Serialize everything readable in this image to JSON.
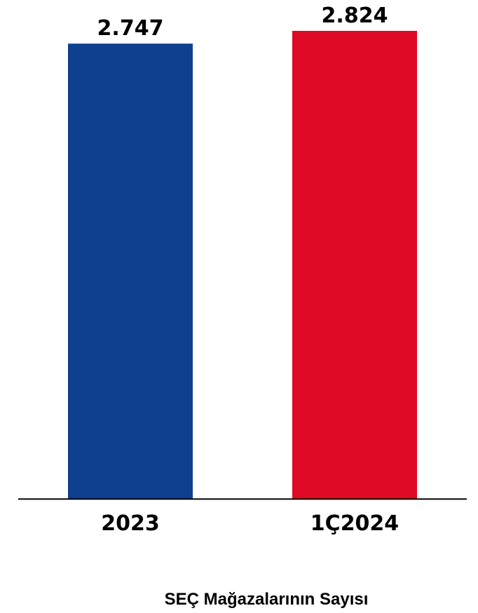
{
  "chart_data": {
    "type": "bar",
    "categories": [
      "2023",
      "1Ç2024"
    ],
    "values": [
      2747,
      2824
    ],
    "value_labels": [
      "2.747",
      "2.824"
    ],
    "colors": [
      "#0e4090",
      "#df0a25"
    ],
    "axis_color": "#000000",
    "title": "SEÇ Mağazalarının Sayısı",
    "xlabel": "",
    "ylabel": "",
    "ylim": [
      0,
      2824
    ],
    "grid": false,
    "legend": "none"
  }
}
